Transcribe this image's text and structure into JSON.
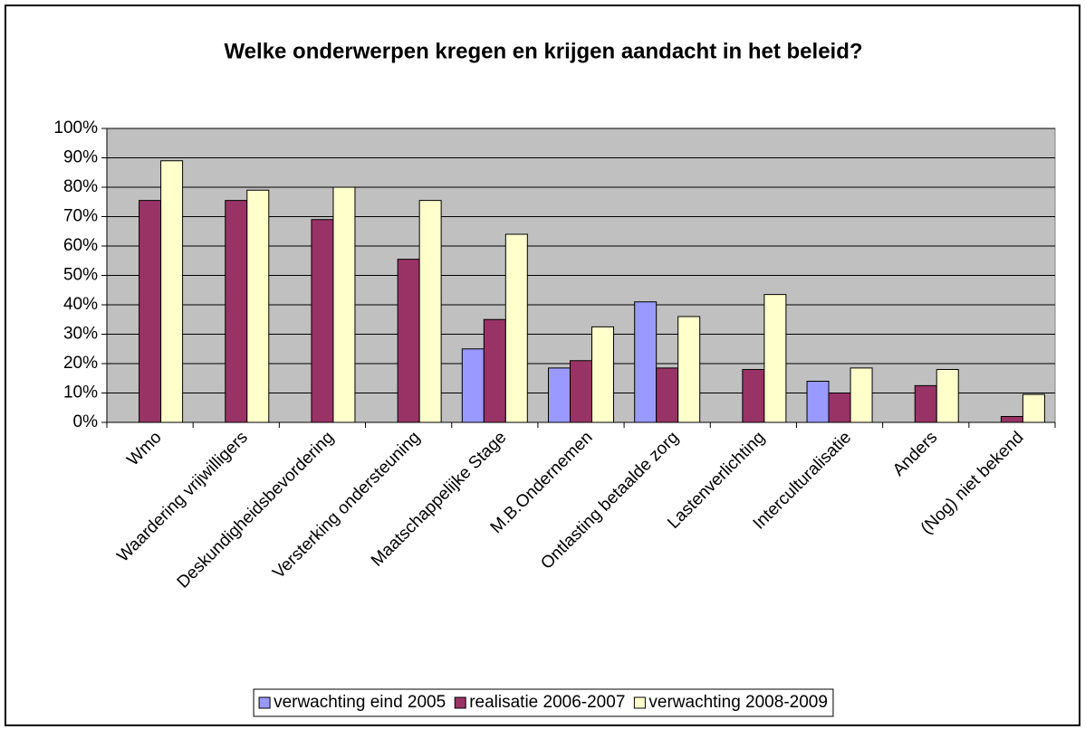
{
  "chart_data": {
    "type": "bar",
    "title": "Welke onderwerpen kregen en krijgen aandacht in het beleid?",
    "categories": [
      "Wmo",
      "Waardering vrijwilligers",
      "Deskundigheidsbevordering",
      "Versterking ondersteuning",
      "Maatschappelijke Stage",
      "M.B.Ondernemen",
      "Ontlasting betaalde zorg",
      "Lastenverlichting",
      "Interculturalisatie",
      "Anders",
      "(Nog) niet bekend"
    ],
    "series": [
      {
        "name": "verwachting eind 2005",
        "color": "#9999ff",
        "values": [
          0,
          0,
          0,
          0,
          25,
          18.5,
          41,
          0,
          14,
          0,
          0
        ]
      },
      {
        "name": "realisatie 2006-2007",
        "color": "#993366",
        "values": [
          75.5,
          75.5,
          69,
          55.5,
          35,
          21,
          18.5,
          18,
          10,
          12.5,
          2
        ]
      },
      {
        "name": "verwachting 2008-2009",
        "color": "#ffffcc",
        "values": [
          89,
          79,
          80,
          75.5,
          64,
          32.5,
          36,
          43.5,
          18.5,
          18,
          9.5
        ]
      }
    ],
    "ylim": [
      0,
      100
    ],
    "yticks": [
      {
        "value": 0,
        "label": "0%"
      },
      {
        "value": 10,
        "label": "10%"
      },
      {
        "value": 20,
        "label": "20%"
      },
      {
        "value": 30,
        "label": "30%"
      },
      {
        "value": 40,
        "label": "40%"
      },
      {
        "value": 50,
        "label": "50%"
      },
      {
        "value": 60,
        "label": "60%"
      },
      {
        "value": 70,
        "label": "70%"
      },
      {
        "value": 80,
        "label": "80%"
      },
      {
        "value": 90,
        "label": "90%"
      },
      {
        "value": 100,
        "label": "100%"
      }
    ],
    "grid": true,
    "plot_background": "#c0c0c0",
    "legend": "bottom"
  }
}
